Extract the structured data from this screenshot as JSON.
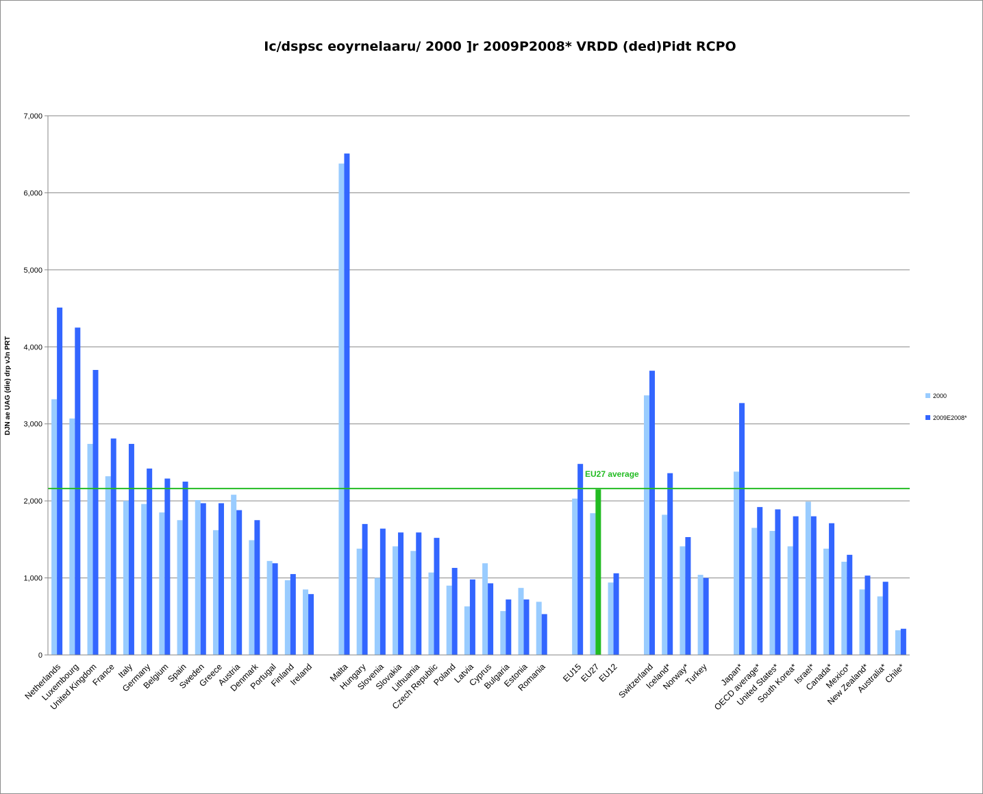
{
  "chart_data": {
    "type": "bar",
    "title": "Ic/dspsc eoyrnelaaru/ 2000 ]r 2009P2008* VRDD (ded)Pidt RCPO",
    "ylabel": "DJN ae UAG (die) drp vJn PRT",
    "xlabel": "",
    "ylim": [
      0,
      7000
    ],
    "yticks": [
      0,
      1000,
      2000,
      3000,
      4000,
      5000,
      6000,
      7000
    ],
    "ytick_labels": [
      "0",
      "1,000",
      "2,000",
      "3,000",
      "4,000",
      "5,000",
      "6,000",
      "7,000"
    ],
    "grid": true,
    "legend_position": "right",
    "colors": {
      "series_2000": "#99ccff",
      "series_2009": "#3366ff",
      "highlight": "#22bb22",
      "reference_line": "#22bb22",
      "gridline": "#868686"
    },
    "categories": [
      "Netherlands",
      "Luxembourg",
      "United Kingdom",
      "France",
      "Italy",
      "Germany",
      "Belgium",
      "Spain",
      "Sweden",
      "Greece",
      "Austria",
      "Denmark",
      "Portugal",
      "Finland",
      "Ireland",
      "",
      "Malta",
      "Hungary",
      "Slovenia",
      "Slovakia",
      "Lithuania",
      "Czech Republic",
      "Poland",
      "Latvia",
      "Cyprus",
      "Bulgaria",
      "Estonia",
      "Romania",
      "",
      "EU15",
      "EU27",
      "EU12",
      "",
      "Switzerland",
      "Iceland*",
      "Norway*",
      "Turkey",
      "",
      "Japan*",
      "OECD average*",
      "United States*",
      "South Korea*",
      "Israel*",
      "Canada*",
      "Mexico*",
      "New Zealand*",
      "Australia*",
      "Chile*"
    ],
    "series": [
      {
        "name": "2000",
        "values": [
          3320,
          3070,
          2740,
          2320,
          2000,
          1960,
          1850,
          1750,
          2010,
          1620,
          2080,
          1490,
          1220,
          970,
          850,
          null,
          6380,
          1380,
          1000,
          1410,
          1350,
          1070,
          900,
          630,
          1190,
          570,
          870,
          690,
          null,
          2030,
          1840,
          940,
          null,
          3370,
          1820,
          1410,
          1040,
          null,
          2380,
          1650,
          1610,
          1410,
          1990,
          1380,
          1210,
          850,
          760,
          320
        ]
      },
      {
        "name": "2009E2008*",
        "values": [
          4510,
          4250,
          3700,
          2810,
          2740,
          2420,
          2290,
          2250,
          1970,
          1970,
          1880,
          1750,
          1190,
          1050,
          790,
          null,
          6510,
          1700,
          1640,
          1590,
          1590,
          1520,
          1130,
          980,
          930,
          720,
          720,
          530,
          null,
          2480,
          2150,
          1060,
          null,
          3690,
          2360,
          1530,
          1000,
          null,
          3270,
          1920,
          1890,
          1800,
          1800,
          1710,
          1300,
          1030,
          950,
          340
        ]
      }
    ],
    "highlight": {
      "category": "EU27",
      "series": "2009E2008*"
    },
    "reference_line": {
      "value": 2160,
      "label": "EU27 average"
    }
  }
}
